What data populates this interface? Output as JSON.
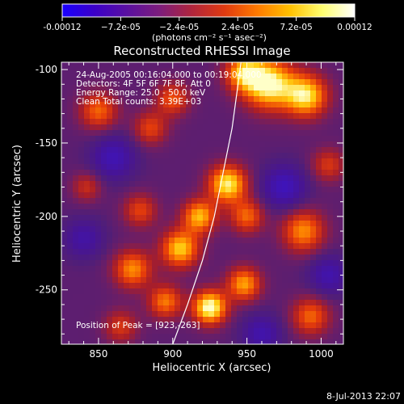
{
  "colorbar": {
    "tick_labels": [
      "-0.00012",
      "−7.2e-05",
      "−2.4e-05",
      "2.4e-05",
      "7.2e-05",
      "0.00012"
    ],
    "tick_values": [
      -0.00012,
      -7.2e-05,
      -2.4e-05,
      2.4e-05,
      7.2e-05,
      0.00012
    ],
    "range": [
      -0.00012,
      0.00012
    ],
    "unit_label": "(photons cm⁻² s⁻¹ asec⁻²)",
    "colors": [
      "#1a00ff",
      "#3b00c8",
      "#5a10a0",
      "#7d1d7c",
      "#b0253c",
      "#e03a10",
      "#ff7a00",
      "#ffc000",
      "#ffff70",
      "#ffffff"
    ]
  },
  "chart_data": {
    "type": "heatmap",
    "title": "Reconstructed RHESSI Image",
    "xlabel": "Heliocentric X (arcsec)",
    "ylabel": "Heliocentric Y (arcsec)",
    "xlim": [
      825,
      1015
    ],
    "ylim": [
      -287,
      -95
    ],
    "x_ticks": [
      850,
      900,
      950,
      1000
    ],
    "y_ticks": [
      -100,
      -150,
      -200,
      -250
    ],
    "x_tick_labels": [
      "850",
      "900",
      "950",
      "1000"
    ],
    "y_tick_labels": [
      "-100",
      "-150",
      "-200",
      "-250"
    ],
    "annotations": [
      "24-Aug-2005 00:16:04.000 to 00:19:04.000",
      "Detectors: 4F 5F 6F 7F 8F, Att 0",
      "Energy Range: 25.0 - 50.0 keV",
      "Clean     Total counts: 3.39E+03"
    ],
    "peak_label": "Position of Peak = [923,-263]",
    "peak_position": [
      923,
      -263
    ],
    "limb_line": [
      [
        900,
        -287
      ],
      [
        910,
        -260
      ],
      [
        920,
        -230
      ],
      [
        928,
        -200
      ],
      [
        934,
        -170
      ],
      [
        940,
        -140
      ],
      [
        944,
        -110
      ],
      [
        946,
        -95
      ]
    ],
    "sources": [
      {
        "x": 965,
        "y": -110,
        "amp": 0.95,
        "sigma": 12
      },
      {
        "x": 990,
        "y": -118,
        "amp": 0.85,
        "sigma": 10
      },
      {
        "x": 948,
        "y": -102,
        "amp": 0.7,
        "sigma": 9
      },
      {
        "x": 850,
        "y": -128,
        "amp": 0.55,
        "sigma": 9
      },
      {
        "x": 885,
        "y": -140,
        "amp": 0.45,
        "sigma": 8
      },
      {
        "x": 900,
        "y": -120,
        "amp": 0.5,
        "sigma": 8
      },
      {
        "x": 937,
        "y": -178,
        "amp": 0.9,
        "sigma": 9
      },
      {
        "x": 918,
        "y": -200,
        "amp": 0.75,
        "sigma": 8
      },
      {
        "x": 950,
        "y": -200,
        "amp": 0.55,
        "sigma": 8
      },
      {
        "x": 905,
        "y": -222,
        "amp": 0.8,
        "sigma": 9
      },
      {
        "x": 878,
        "y": -196,
        "amp": 0.45,
        "sigma": 8
      },
      {
        "x": 873,
        "y": -236,
        "amp": 0.65,
        "sigma": 9
      },
      {
        "x": 895,
        "y": -258,
        "amp": 0.6,
        "sigma": 8
      },
      {
        "x": 925,
        "y": -262,
        "amp": 1.0,
        "sigma": 8
      },
      {
        "x": 948,
        "y": -246,
        "amp": 0.7,
        "sigma": 8
      },
      {
        "x": 988,
        "y": -210,
        "amp": 0.65,
        "sigma": 10
      },
      {
        "x": 993,
        "y": -268,
        "amp": 0.55,
        "sigma": 9
      },
      {
        "x": 1005,
        "y": -165,
        "amp": 0.4,
        "sigma": 8
      },
      {
        "x": 842,
        "y": -180,
        "amp": 0.35,
        "sigma": 7
      },
      {
        "x": 865,
        "y": -275,
        "amp": 0.4,
        "sigma": 8
      }
    ],
    "negative_sources": [
      {
        "x": 860,
        "y": -160,
        "amp": 0.45,
        "sigma": 10
      },
      {
        "x": 975,
        "y": -180,
        "amp": 0.5,
        "sigma": 10
      },
      {
        "x": 960,
        "y": -280,
        "amp": 0.4,
        "sigma": 9
      },
      {
        "x": 840,
        "y": -215,
        "amp": 0.35,
        "sigma": 9
      },
      {
        "x": 1005,
        "y": -240,
        "amp": 0.4,
        "sigma": 9
      }
    ]
  },
  "footer": {
    "timestamp": "8-Jul-2013 22:07"
  }
}
